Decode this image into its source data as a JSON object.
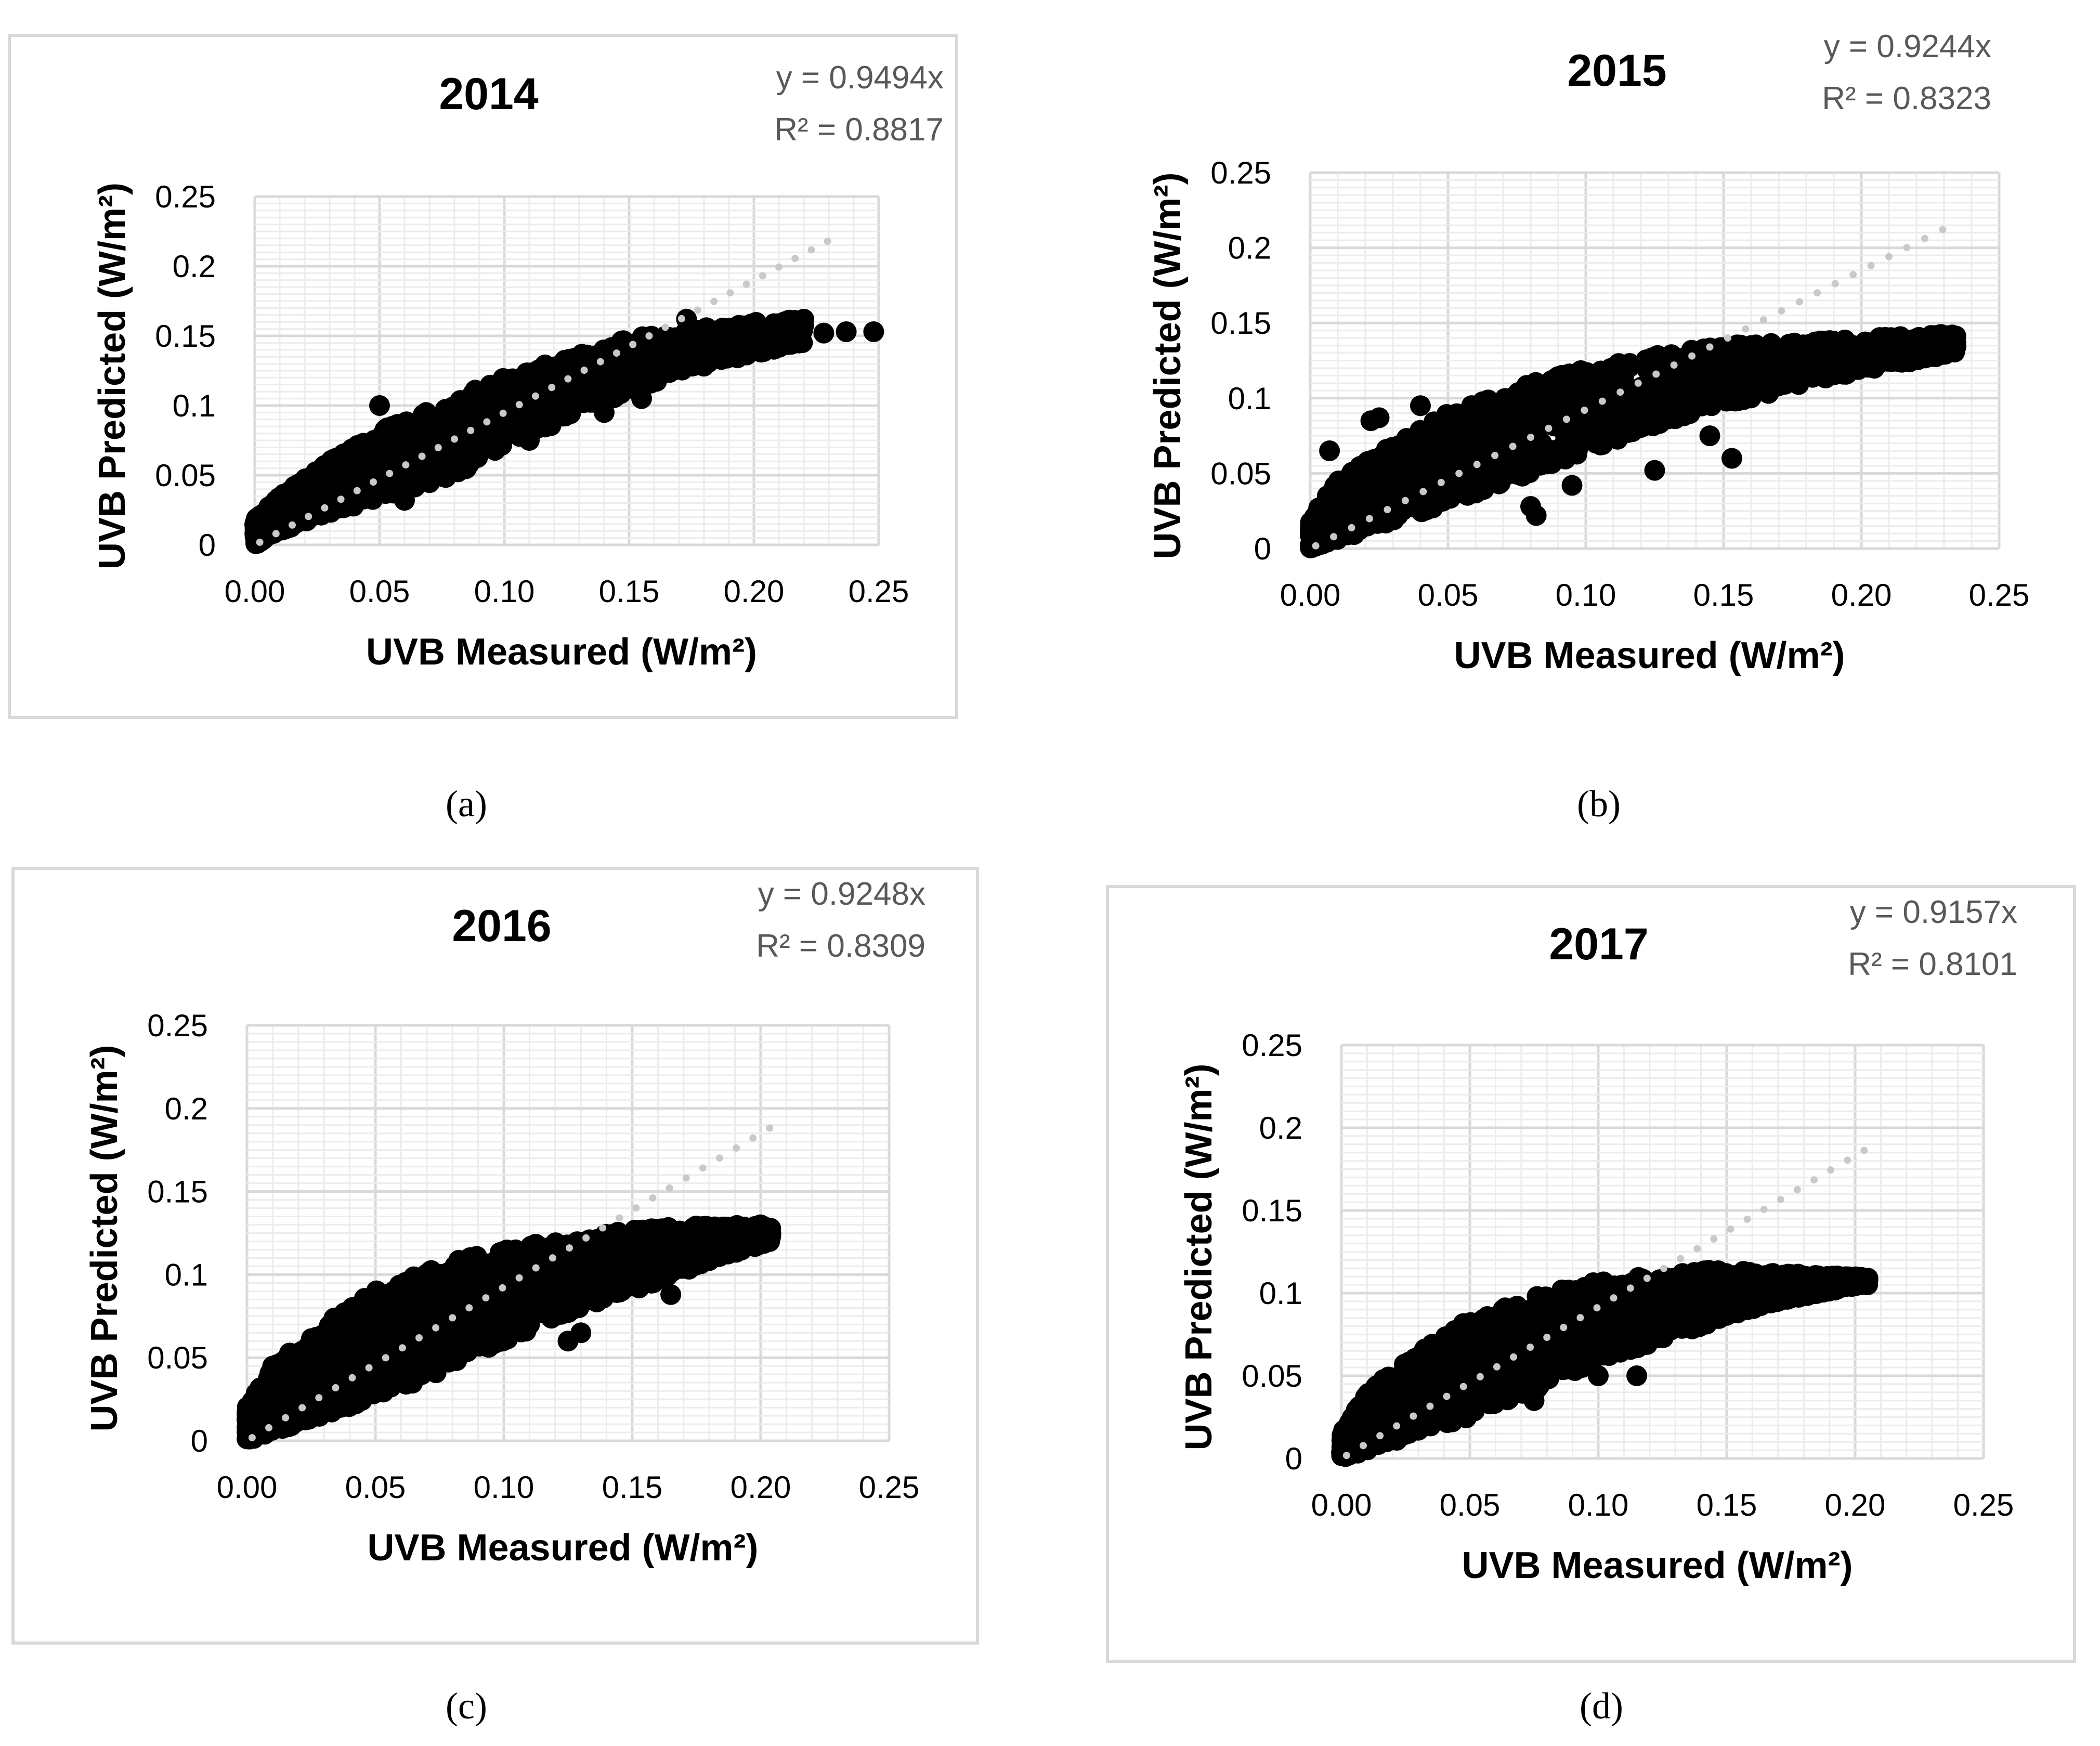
{
  "chart_data": [
    {
      "id": "a",
      "type": "scatter",
      "title": "2014",
      "caption": "(a)",
      "equation": "y = 0.9494x",
      "r2": "R² = 0.8817",
      "slope": 0.9494,
      "xlabel": "UVB Measured (W/m²)",
      "ylabel": "UVB Predicted (W/m²)",
      "xlim": [
        0,
        0.25
      ],
      "ylim": [
        0,
        0.25
      ],
      "xticks": [
        "0.00",
        "0.05",
        "0.10",
        "0.15",
        "0.20",
        "0.25"
      ],
      "yticks": [
        "0",
        "0.05",
        "0.1",
        "0.15",
        "0.2",
        "0.25"
      ],
      "trendline": {
        "style": "dotted",
        "color": "#c9c9c9",
        "x_end": 0.23
      },
      "series": [
        {
          "name": "UVB",
          "color": "#000000",
          "band_x": [
            0.0,
            0.01,
            0.03,
            0.05,
            0.08,
            0.1,
            0.13,
            0.15,
            0.18,
            0.2,
            0.22
          ],
          "band_lower": [
            0.0,
            0.01,
            0.022,
            0.034,
            0.05,
            0.07,
            0.095,
            0.11,
            0.128,
            0.137,
            0.145
          ],
          "band_upper": [
            0.018,
            0.035,
            0.06,
            0.082,
            0.105,
            0.12,
            0.137,
            0.148,
            0.156,
            0.16,
            0.162
          ],
          "x": [
            0.05,
            0.06,
            0.11,
            0.12,
            0.14,
            0.155,
            0.173,
            0.218,
            0.228,
            0.237,
            0.248
          ],
          "y": [
            0.1,
            0.032,
            0.075,
            0.1,
            0.095,
            0.105,
            0.162,
            0.15,
            0.152,
            0.153,
            0.153
          ]
        }
      ]
    },
    {
      "id": "b",
      "type": "scatter",
      "title": "2015",
      "caption": "(b)",
      "equation": "y = 0.9244x",
      "r2": "R² = 0.8323",
      "slope": 0.9244,
      "xlabel": "UVB Measured (W/m²)",
      "ylabel": "UVB Predicted (W/m²)",
      "xlim": [
        0,
        0.25
      ],
      "ylim": [
        0,
        0.25
      ],
      "xticks": [
        "0.00",
        "0.05",
        "0.10",
        "0.15",
        "0.20",
        "0.25"
      ],
      "yticks": [
        "0",
        "0.05",
        "0.1",
        "0.15",
        "0.2",
        "0.25"
      ],
      "trendline": {
        "style": "dotted",
        "color": "#c9c9c9",
        "x_end": 0.235
      },
      "series": [
        {
          "name": "UVB",
          "color": "#000000",
          "band_x": [
            0.0,
            0.01,
            0.03,
            0.05,
            0.08,
            0.1,
            0.13,
            0.15,
            0.18,
            0.2,
            0.22,
            0.235
          ],
          "band_lower": [
            0.0,
            0.005,
            0.018,
            0.03,
            0.05,
            0.065,
            0.085,
            0.095,
            0.11,
            0.118,
            0.125,
            0.13
          ],
          "band_upper": [
            0.02,
            0.045,
            0.07,
            0.09,
            0.11,
            0.12,
            0.13,
            0.135,
            0.138,
            0.14,
            0.142,
            0.143
          ],
          "x": [
            0.007,
            0.022,
            0.025,
            0.04,
            0.08,
            0.082,
            0.095,
            0.125,
            0.145,
            0.153,
            0.233
          ],
          "y": [
            0.065,
            0.085,
            0.087,
            0.095,
            0.028,
            0.022,
            0.042,
            0.052,
            0.075,
            0.06,
            0.142
          ]
        }
      ]
    },
    {
      "id": "c",
      "type": "scatter",
      "title": "2016",
      "caption": "(c)",
      "equation": "y = 0.9248x",
      "r2": "R² = 0.8309",
      "slope": 0.9248,
      "xlabel": "UVB Measured (W/m²)",
      "ylabel": "UVB Predicted (W/m²)",
      "xlim": [
        0,
        0.25
      ],
      "ylim": [
        0,
        0.25
      ],
      "xticks": [
        "0.00",
        "0.05",
        "0.10",
        "0.15",
        "0.20",
        "0.25"
      ],
      "yticks": [
        "0",
        "0.05",
        "0.1",
        "0.15",
        "0.2",
        "0.25"
      ],
      "trendline": {
        "style": "dotted",
        "color": "#c9c9c9",
        "x_end": 0.205
      },
      "series": [
        {
          "name": "UVB",
          "color": "#000000",
          "band_x": [
            0.0,
            0.01,
            0.03,
            0.05,
            0.08,
            0.1,
            0.13,
            0.15,
            0.18,
            0.2,
            0.205
          ],
          "band_lower": [
            0.0,
            0.005,
            0.015,
            0.025,
            0.045,
            0.06,
            0.08,
            0.09,
            0.108,
            0.118,
            0.12
          ],
          "band_upper": [
            0.02,
            0.045,
            0.07,
            0.09,
            0.108,
            0.115,
            0.123,
            0.127,
            0.13,
            0.13,
            0.128
          ],
          "x": [
            0.11,
            0.125,
            0.13,
            0.165
          ],
          "y": [
            0.07,
            0.06,
            0.065,
            0.088
          ]
        }
      ]
    },
    {
      "id": "d",
      "type": "scatter",
      "title": "2017",
      "caption": "(d)",
      "equation": "y = 0.9157x",
      "r2": "R² = 0.8101",
      "slope": 0.9157,
      "xlabel": "UVB Measured (W/m²)",
      "ylabel": "UVB Predicted (W/m²)",
      "xlim": [
        0,
        0.25
      ],
      "ylim": [
        0,
        0.25
      ],
      "xticks": [
        "0.00",
        "0.05",
        "0.10",
        "0.15",
        "0.20",
        "0.25"
      ],
      "yticks": [
        "0",
        "0.05",
        "0.1",
        "0.15",
        "0.2",
        "0.25"
      ],
      "trendline": {
        "style": "dotted",
        "color": "#c9c9c9",
        "x_end": 0.205
      },
      "series": [
        {
          "name": "UVB",
          "color": "#000000",
          "band_x": [
            0.0,
            0.01,
            0.03,
            0.05,
            0.08,
            0.1,
            0.13,
            0.15,
            0.17,
            0.2,
            0.205
          ],
          "band_lower": [
            0.0,
            0.005,
            0.015,
            0.025,
            0.045,
            0.058,
            0.075,
            0.085,
            0.095,
            0.104,
            0.105
          ],
          "band_upper": [
            0.015,
            0.04,
            0.065,
            0.085,
            0.1,
            0.107,
            0.112,
            0.115,
            0.112,
            0.11,
            0.11
          ],
          "x": [
            0.055,
            0.075,
            0.1,
            0.115,
            0.18,
            0.195,
            0.203,
            0.205
          ],
          "y": [
            0.04,
            0.035,
            0.05,
            0.05,
            0.105,
            0.106,
            0.107,
            0.109
          ]
        }
      ]
    }
  ]
}
